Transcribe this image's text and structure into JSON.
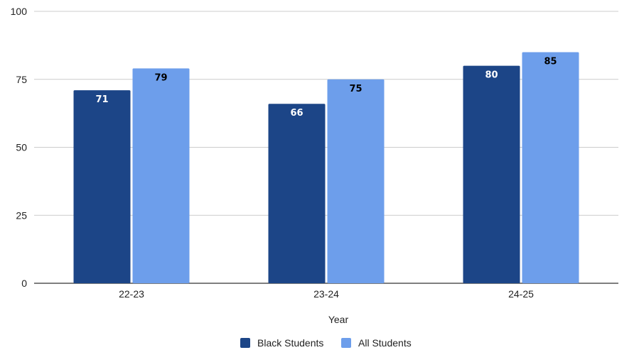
{
  "chart_data": {
    "type": "bar",
    "categories": [
      "22-23",
      "23-24",
      "24-25"
    ],
    "series": [
      {
        "name": "Black Students",
        "values": [
          71,
          66,
          80
        ],
        "color": "#1c4587",
        "label_color": "#ffffff"
      },
      {
        "name": "All Students",
        "values": [
          79,
          75,
          85
        ],
        "color": "#6d9eeb",
        "label_color": "#000000"
      }
    ],
    "xlabel": "Year",
    "ylabel": "",
    "ylim": [
      0,
      100
    ],
    "yticks": [
      0,
      25,
      50,
      75,
      100
    ],
    "grid": true,
    "legend": "bottom"
  }
}
